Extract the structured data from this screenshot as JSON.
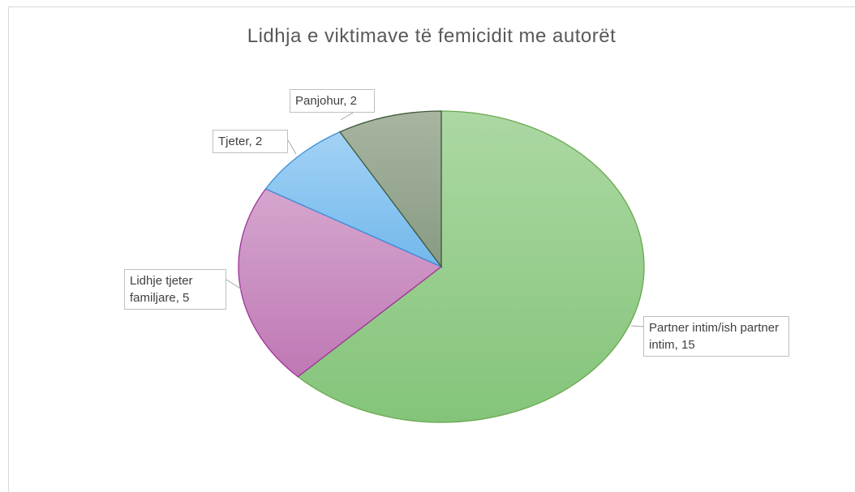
{
  "chart_data": {
    "type": "pie",
    "title": "Lidhja e viktimave të femicidit me autorët",
    "categories": [
      "Partner intim/ish partner intim",
      "Lidhje tjeter familjare",
      "Tjeter",
      "Panjohur"
    ],
    "values": [
      15,
      5,
      2,
      2
    ],
    "colors": [
      "#94cd88",
      "#c98cc2",
      "#86c3f0",
      "#98a891"
    ]
  }
}
